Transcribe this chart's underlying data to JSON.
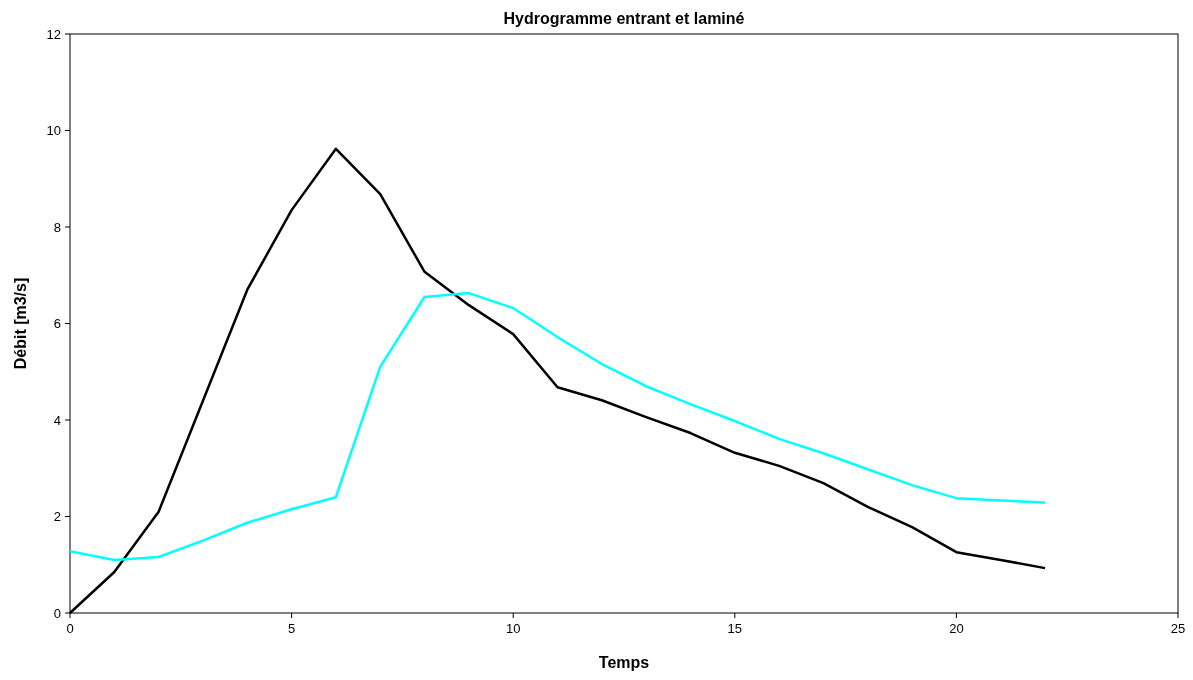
{
  "chart_data": {
    "type": "line",
    "title": "Hydrogramme entrant et laminé",
    "xlabel": "Temps",
    "ylabel": "Débit [m3/s]",
    "x": [
      0,
      1,
      2,
      3,
      4,
      5,
      6,
      7,
      8,
      9,
      10,
      11,
      12,
      13,
      14,
      15,
      16,
      17,
      18,
      19,
      20,
      21,
      22
    ],
    "series": [
      {
        "color": "#000000",
        "values": [
          0,
          0.85,
          2.1,
          4.4,
          6.7,
          8.35,
          9.62,
          8.68,
          7.07,
          6.38,
          5.78,
          4.68,
          4.41,
          4.06,
          3.73,
          3.32,
          3.05,
          2.69,
          2.2,
          1.78,
          1.26,
          1.1,
          0.93
        ]
      },
      {
        "color": "#00ffff",
        "values": [
          1.28,
          1.1,
          1.16,
          1.5,
          1.87,
          2.15,
          2.4,
          5.1,
          6.55,
          6.63,
          6.32,
          5.72,
          5.16,
          4.7,
          4.33,
          3.98,
          3.61,
          3.31,
          2.98,
          2.65,
          2.38,
          2.33,
          2.29
        ]
      }
    ],
    "xlim": [
      0,
      25
    ],
    "xticks": [
      0,
      5,
      10,
      15,
      20,
      25
    ],
    "ylim": [
      0,
      12
    ],
    "yticks": [
      0,
      2,
      4,
      6,
      8,
      10,
      12
    ],
    "grid": false,
    "marker": "none",
    "line_style": "solid"
  }
}
